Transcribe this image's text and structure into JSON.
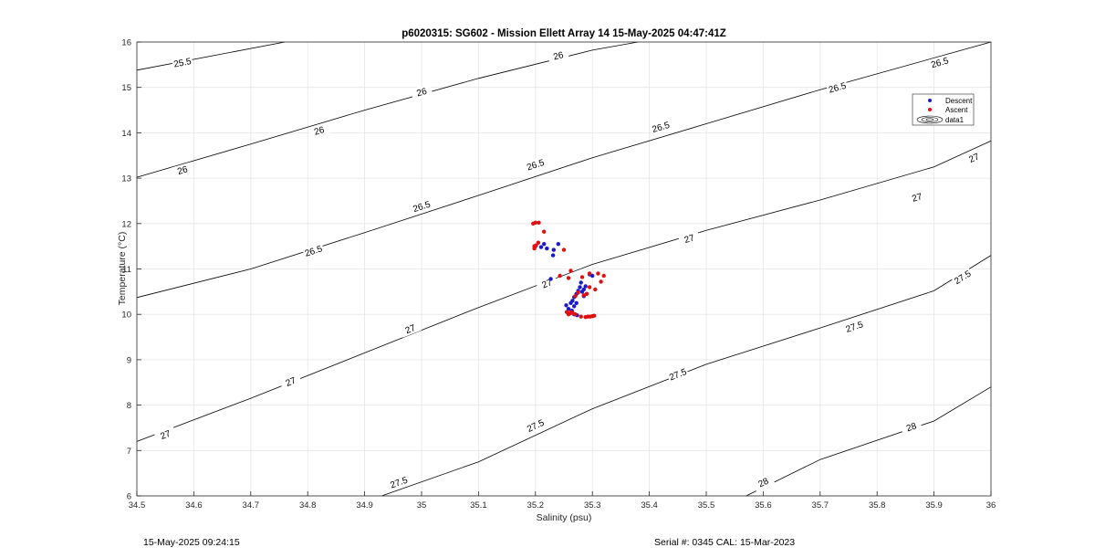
{
  "chart_data": {
    "type": "scatter",
    "title": "p6020315: SG602 - Mission Ellett Array 14 15-May-2025 04:47:41Z",
    "xlabel": "Salinity (psu)",
    "ylabel": "Temperature (°C)",
    "xlim": [
      34.5,
      36
    ],
    "ylim": [
      6,
      16
    ],
    "x_ticks": [
      "34.5",
      "34.6",
      "34.7",
      "34.8",
      "34.9",
      "35",
      "35.1",
      "35.2",
      "35.3",
      "35.4",
      "35.5",
      "35.6",
      "35.7",
      "35.8",
      "35.9",
      "36"
    ],
    "y_ticks": [
      "6",
      "7",
      "8",
      "9",
      "10",
      "11",
      "12",
      "13",
      "14",
      "15",
      "16"
    ],
    "grid": true,
    "legend_position": "top-right",
    "legend": [
      "Descent",
      "Ascent",
      "data1"
    ],
    "colors": {
      "descent": "#1a1acc",
      "ascent": "#e01010",
      "contour": "#000000"
    },
    "contours": [
      {
        "label": "25.5",
        "labels_at": [
          [
            34.58,
            15.55
          ]
        ],
        "points": [
          [
            34.5,
            15.38
          ],
          [
            34.76,
            16.0
          ]
        ]
      },
      {
        "label": "26",
        "labels_at": [
          [
            34.58,
            13.18
          ],
          [
            34.82,
            14.05
          ],
          [
            35.0,
            14.9
          ],
          [
            35.24,
            15.7
          ]
        ],
        "points": [
          [
            34.5,
            13.02
          ],
          [
            34.7,
            13.75
          ],
          [
            34.9,
            14.5
          ],
          [
            35.1,
            15.2
          ],
          [
            35.3,
            15.82
          ],
          [
            35.38,
            16.0
          ]
        ]
      },
      {
        "label": "26.5",
        "labels_at": [
          [
            34.81,
            11.4
          ],
          [
            35.0,
            12.38
          ],
          [
            35.2,
            13.3
          ],
          [
            35.42,
            14.13
          ],
          [
            35.73,
            15.0
          ],
          [
            35.91,
            15.55
          ]
        ]
      },
      {
        "label": "27",
        "labels_at": [
          [
            34.55,
            7.35
          ],
          [
            34.77,
            8.52
          ],
          [
            34.98,
            9.68
          ],
          [
            35.22,
            10.68
          ],
          [
            35.47,
            11.67
          ],
          [
            35.87,
            12.58
          ],
          [
            35.97,
            13.45
          ]
        ]
      },
      {
        "label": "27.5",
        "labels_at": [
          [
            34.96,
            6.3
          ],
          [
            35.2,
            7.55
          ],
          [
            35.45,
            8.68
          ],
          [
            35.76,
            9.73
          ],
          [
            35.95,
            10.82
          ]
        ]
      },
      {
        "label": "28",
        "labels_at": [
          [
            35.6,
            6.3
          ],
          [
            35.86,
            7.52
          ]
        ]
      }
    ],
    "contour_paths": {
      "25.5": [
        [
          34.5,
          15.38
        ],
        [
          34.76,
          16.0
        ]
      ],
      "26": [
        [
          34.5,
          13.02
        ],
        [
          34.7,
          13.75
        ],
        [
          34.9,
          14.5
        ],
        [
          35.1,
          15.2
        ],
        [
          35.3,
          15.82
        ],
        [
          35.38,
          16.0
        ]
      ],
      "26.5": [
        [
          34.5,
          10.37
        ],
        [
          34.7,
          11.0
        ],
        [
          34.9,
          11.8
        ],
        [
          35.1,
          12.62
        ],
        [
          35.3,
          13.45
        ],
        [
          35.5,
          14.2
        ],
        [
          35.7,
          14.95
        ],
        [
          35.9,
          15.65
        ],
        [
          36.0,
          16.0
        ]
      ],
      "27": [
        [
          34.5,
          7.2
        ],
        [
          34.7,
          8.15
        ],
        [
          34.9,
          9.15
        ],
        [
          35.1,
          10.15
        ],
        [
          35.3,
          11.1
        ],
        [
          35.5,
          11.85
        ],
        [
          35.7,
          12.52
        ],
        [
          35.9,
          13.25
        ],
        [
          36.0,
          13.82
        ]
      ],
      "27.5": [
        [
          34.93,
          6.0
        ],
        [
          35.1,
          6.75
        ],
        [
          35.3,
          7.92
        ],
        [
          35.5,
          8.9
        ],
        [
          35.7,
          9.7
        ],
        [
          35.9,
          10.52
        ],
        [
          36.0,
          11.3
        ]
      ],
      "28": [
        [
          35.57,
          6.0
        ],
        [
          35.7,
          6.8
        ],
        [
          35.9,
          7.65
        ],
        [
          36.0,
          8.4
        ]
      ]
    },
    "series": [
      {
        "name": "Descent",
        "points": [
          [
            35.2,
            11.5
          ],
          [
            35.21,
            11.48
          ],
          [
            35.215,
            11.55
          ],
          [
            35.22,
            11.45
          ],
          [
            35.232,
            11.42
          ],
          [
            35.231,
            11.3
          ],
          [
            35.227,
            10.78
          ],
          [
            35.24,
            11.55
          ],
          [
            35.262,
            10.25
          ],
          [
            35.265,
            10.3
          ],
          [
            35.268,
            10.38
          ],
          [
            35.272,
            10.45
          ],
          [
            35.275,
            10.52
          ],
          [
            35.278,
            10.6
          ],
          [
            35.28,
            10.7
          ],
          [
            35.282,
            10.5
          ],
          [
            35.285,
            10.55
          ],
          [
            35.288,
            10.62
          ],
          [
            35.29,
            10.45
          ],
          [
            35.285,
            10.4
          ],
          [
            35.272,
            10.25
          ],
          [
            35.268,
            10.18
          ],
          [
            35.264,
            10.08
          ],
          [
            35.258,
            10.12
          ],
          [
            35.254,
            10.2
          ],
          [
            35.26,
            10.02
          ],
          [
            35.268,
            10.0
          ],
          [
            35.273,
            9.98
          ],
          [
            35.295,
            10.88
          ],
          [
            35.3,
            10.85
          ]
        ]
      },
      {
        "name": "Ascent",
        "points": [
          [
            35.196,
            12.0
          ],
          [
            35.2,
            12.02
          ],
          [
            35.206,
            12.02
          ],
          [
            35.215,
            11.82
          ],
          [
            35.198,
            11.45
          ],
          [
            35.198,
            11.5
          ],
          [
            35.201,
            11.52
          ],
          [
            35.205,
            11.58
          ],
          [
            35.25,
            11.42
          ],
          [
            35.243,
            10.85
          ],
          [
            35.262,
            10.96
          ],
          [
            35.258,
            10.8
          ],
          [
            35.282,
            10.82
          ],
          [
            35.295,
            10.9
          ],
          [
            35.31,
            10.9
          ],
          [
            35.32,
            10.85
          ],
          [
            35.315,
            10.72
          ],
          [
            35.305,
            10.55
          ],
          [
            35.295,
            10.6
          ],
          [
            35.29,
            10.45
          ],
          [
            35.285,
            10.42
          ],
          [
            35.275,
            10.48
          ],
          [
            35.27,
            10.4
          ],
          [
            35.255,
            10.05
          ],
          [
            35.258,
            10.0
          ],
          [
            35.262,
            10.05
          ],
          [
            35.266,
            10.02
          ],
          [
            35.27,
            10.0
          ],
          [
            35.28,
            9.95
          ],
          [
            35.288,
            9.94
          ],
          [
            35.292,
            9.95
          ],
          [
            35.296,
            9.95
          ],
          [
            35.3,
            9.96
          ],
          [
            35.303,
            9.97
          ]
        ]
      }
    ]
  },
  "footer": {
    "left": "15-May-2025 09:24:15",
    "right": "Serial #: 0345  CAL: 15-Mar-2023"
  }
}
